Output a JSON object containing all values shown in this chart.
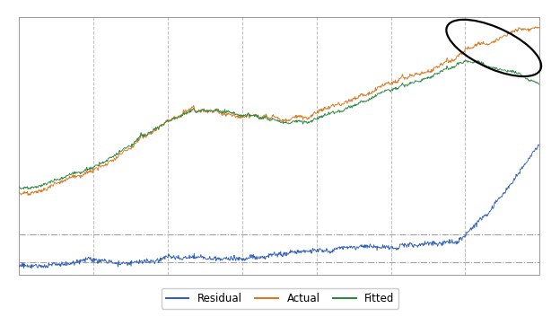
{
  "n_points": 1000,
  "actual_color": "#d97820",
  "fitted_color": "#2a8840",
  "residual_color": "#3060b8",
  "background_color": "#ffffff",
  "grid_color": "#b8b8b8",
  "hline_color": "#888888",
  "legend_labels": [
    "Residual",
    "Actual",
    "Fitted"
  ],
  "figsize": [
    6.24,
    3.53
  ],
  "dpi": 100
}
